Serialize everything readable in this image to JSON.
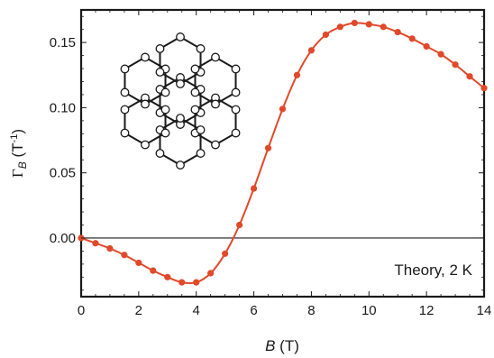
{
  "chart_data": {
    "type": "line",
    "title": "",
    "xlabel_var": "B",
    "xlabel_unit": " (T)",
    "ylabel_var": "Γ",
    "ylabel_sub": "B",
    "ylabel_unit": " (T",
    "ylabel_unit_sup": "-1",
    "ylabel_unit_close": ")",
    "annotation": "Theory, 2 K",
    "xlim": [
      0,
      14
    ],
    "ylim": [
      -0.045,
      0.175
    ],
    "xticks": [
      0,
      2,
      4,
      6,
      8,
      10,
      12,
      14
    ],
    "xtick_labels": [
      "0",
      "2",
      "4",
      "6",
      "8",
      "10",
      "12",
      "14"
    ],
    "yticks": [
      0.0,
      0.05,
      0.1,
      0.15
    ],
    "ytick_labels": [
      "0.00",
      "0.05",
      "0.10",
      "0.15"
    ],
    "zero_line": true,
    "grid": false,
    "series": [
      {
        "color": "#e0492a",
        "x": [
          0,
          0.5,
          1.0,
          1.5,
          2.0,
          2.5,
          3.0,
          3.5,
          4.0,
          4.5,
          5.0,
          5.5,
          6.0,
          6.5,
          7.0,
          7.5,
          8.0,
          8.5,
          9.0,
          9.5,
          10.0,
          10.5,
          11.0,
          11.5,
          12.0,
          12.5,
          13.0,
          13.5,
          14.0
        ],
        "y": [
          0.0,
          -0.004,
          -0.008,
          -0.013,
          -0.019,
          -0.025,
          -0.03,
          -0.034,
          -0.034,
          -0.027,
          -0.012,
          0.01,
          0.038,
          0.069,
          0.099,
          0.125,
          0.144,
          0.156,
          0.162,
          0.165,
          0.164,
          0.162,
          0.158,
          0.153,
          0.147,
          0.141,
          0.133,
          0.124,
          0.115
        ]
      }
    ]
  },
  "inset": {
    "name": "honeycomb-lattice",
    "line_color": "#1a1a1a",
    "node_fill": "#ffffff"
  }
}
